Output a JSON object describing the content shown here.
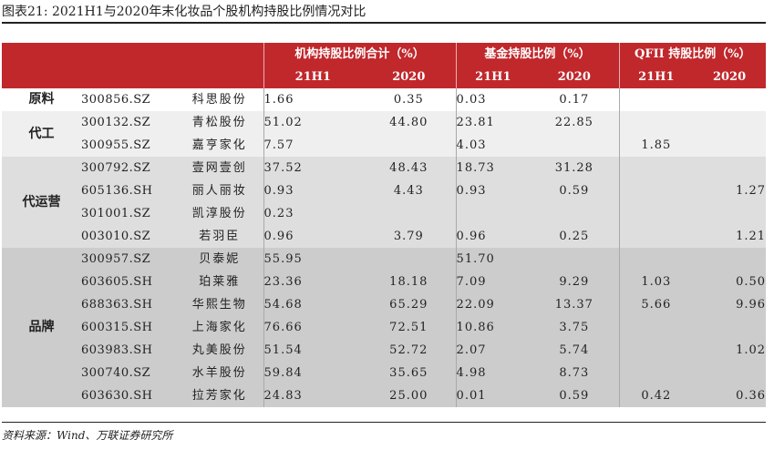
{
  "title": "图表21:  2021H1与2020年末化妆品个股机构持股比例情况对比",
  "header": {
    "group1": "机构持股比例合计（%）",
    "group2": "基金持股比例（%）",
    "group3": "QFII 持股比例（%）",
    "y1": "21H1",
    "y2": "2020"
  },
  "rows": [
    {
      "code": "300856.SZ",
      "name": "科思股份",
      "inst21": "1.66",
      "inst20": "0.35",
      "fund21": "0.03",
      "fund20": "0.17",
      "q21": "",
      "q20": ""
    },
    {
      "code": "300132.SZ",
      "name": "青松股份",
      "inst21": "51.02",
      "inst20": "44.80",
      "fund21": "23.81",
      "fund20": "22.85",
      "q21": "",
      "q20": ""
    },
    {
      "code": "300955.SZ",
      "name": "嘉亨家化",
      "inst21": "7.57",
      "inst20": "",
      "fund21": "4.03",
      "fund20": "",
      "q21": "1.85",
      "q20": ""
    },
    {
      "code": "300792.SZ",
      "name": "壹网壹创",
      "inst21": "37.52",
      "inst20": "48.43",
      "fund21": "18.73",
      "fund20": "31.28",
      "q21": "",
      "q20": ""
    },
    {
      "code": "605136.SH",
      "name": "丽人丽妆",
      "inst21": "0.93",
      "inst20": "4.43",
      "fund21": "0.93",
      "fund20": "0.59",
      "q21": "",
      "q20": "1.27"
    },
    {
      "code": "301001.SZ",
      "name": "凯淳股份",
      "inst21": "0.23",
      "inst20": "",
      "fund21": "",
      "fund20": "",
      "q21": "",
      "q20": ""
    },
    {
      "code": "003010.SZ",
      "name": "若羽臣",
      "inst21": "0.96",
      "inst20": "3.79",
      "fund21": "0.96",
      "fund20": "0.25",
      "q21": "",
      "q20": "1.21"
    },
    {
      "code": "300957.SZ",
      "name": "贝泰妮",
      "inst21": "55.95",
      "inst20": "",
      "fund21": "51.70",
      "fund20": "",
      "q21": "",
      "q20": ""
    },
    {
      "code": "603605.SH",
      "name": "珀莱雅",
      "inst21": "23.36",
      "inst20": "18.18",
      "fund21": "7.09",
      "fund20": "9.29",
      "q21": "1.03",
      "q20": "0.50"
    },
    {
      "code": "688363.SH",
      "name": "华熙生物",
      "inst21": "54.68",
      "inst20": "65.29",
      "fund21": "22.09",
      "fund20": "13.37",
      "q21": "5.66",
      "q20": "9.96"
    },
    {
      "code": "600315.SH",
      "name": "上海家化",
      "inst21": "76.66",
      "inst20": "72.51",
      "fund21": "10.86",
      "fund20": "3.75",
      "q21": "",
      "q20": ""
    },
    {
      "code": "603983.SH",
      "name": "丸美股份",
      "inst21": "51.54",
      "inst20": "52.72",
      "fund21": "2.07",
      "fund20": "5.74",
      "q21": "",
      "q20": "1.02"
    },
    {
      "code": "300740.SZ",
      "name": "水羊股份",
      "inst21": "59.84",
      "inst20": "35.65",
      "fund21": "4.98",
      "fund20": "8.73",
      "q21": "",
      "q20": ""
    },
    {
      "code": "603630.SH",
      "name": "拉芳家化",
      "inst21": "24.83",
      "inst20": "25.00",
      "fund21": "0.01",
      "fund20": "0.59",
      "q21": "0.42",
      "q20": "0.36"
    }
  ],
  "categories": [
    "原料",
    "代工",
    "代运营",
    "品牌"
  ],
  "source": "资料来源：Wind、万联证券研究所"
}
